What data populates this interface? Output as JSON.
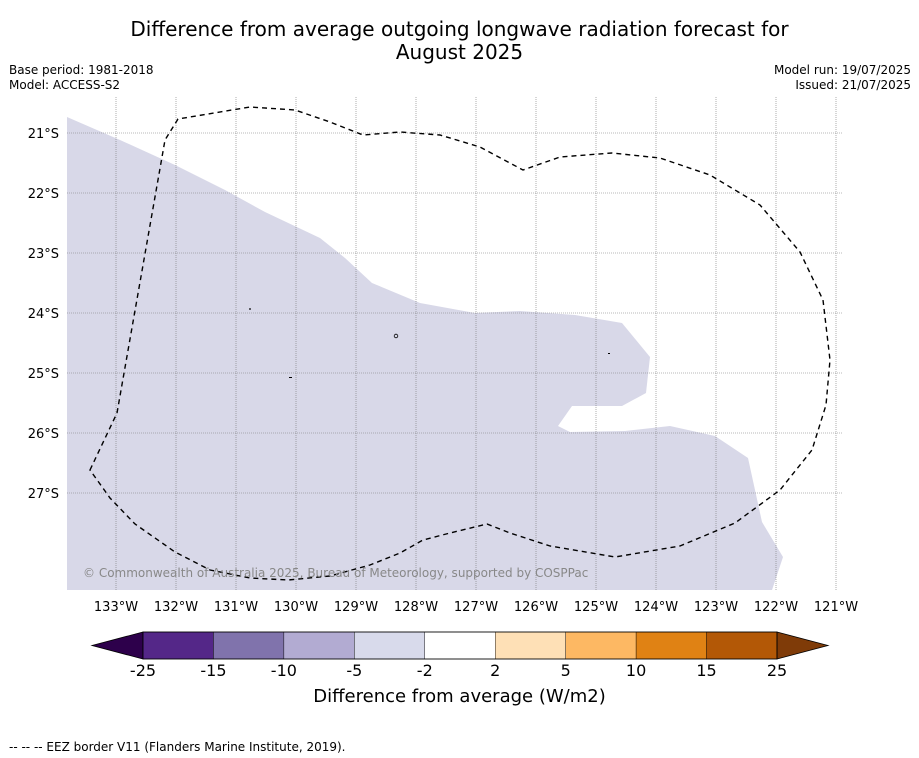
{
  "title": {
    "line1": "Difference from average outgoing longwave radiation forecast for",
    "line2": "August 2025"
  },
  "info_left": {
    "base_period": "Base period: 1981-2018",
    "model": "Model: ACCESS-S2"
  },
  "info_right": {
    "model_run": "Model run: 19/07/2025",
    "issued": "Issued: 21/07/2025"
  },
  "map": {
    "latitude_labels": [
      "21°S",
      "22°S",
      "23°S",
      "24°S",
      "25°S",
      "26°S",
      "27°S"
    ],
    "longitude_labels": [
      "133°W",
      "132°W",
      "131°W",
      "130°W",
      "129°W",
      "128°W",
      "127°W",
      "126°W",
      "125°W",
      "124°W",
      "123°W",
      "122°W",
      "121°W"
    ],
    "data_region_category": "-5 to -2",
    "data_region_color": "#d8d8e8",
    "eez_border_style": "dashed black",
    "copyright": "© Commonwealth of Australia 2025, Bureau of Meteorology, supported by COSPPac"
  },
  "colorbar": {
    "title": "Difference from average (W/m2)",
    "tick_labels": [
      "-25",
      "-15",
      "-10",
      "-5",
      "-2",
      "2",
      "5",
      "10",
      "15",
      "25"
    ],
    "extend_low_color": "#2d004b",
    "extend_high_color": "#7f3b08",
    "bin_colors": [
      "#542788",
      "#8073ac",
      "#b2abd2",
      "#d8daeb",
      "#ffffff",
      "#fee0b6",
      "#fdb863",
      "#e08214",
      "#b35806"
    ]
  },
  "footnote": "--  --  -- EEZ border V11 (Flanders Marine Institute, 2019)."
}
